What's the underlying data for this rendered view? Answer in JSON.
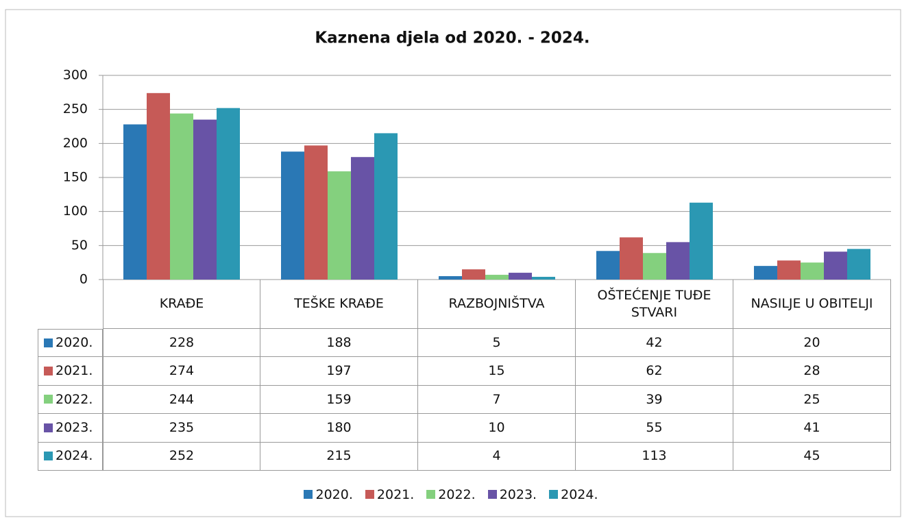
{
  "chart_data": {
    "type": "bar",
    "title": "Kaznena djela od 2020. - 2024.",
    "categories": [
      "KRAĐE",
      "TEŠKE KRAĐE",
      "RAZBOJNIŠTVA",
      "OŠTEĆENJE TUĐE STVARI",
      "NASILJE U OBITELJI"
    ],
    "series": [
      {
        "name": "2020.",
        "color": "#2a78b5",
        "values": [
          228,
          188,
          5,
          42,
          20
        ]
      },
      {
        "name": "2021.",
        "color": "#c65a57",
        "values": [
          274,
          197,
          15,
          62,
          28
        ]
      },
      {
        "name": "2022.",
        "color": "#84d07e",
        "values": [
          244,
          159,
          7,
          39,
          25
        ]
      },
      {
        "name": "2023.",
        "color": "#6853a6",
        "values": [
          235,
          180,
          10,
          55,
          41
        ]
      },
      {
        "name": "2024.",
        "color": "#2b98b3",
        "values": [
          252,
          215,
          4,
          113,
          45
        ]
      }
    ],
    "ylim": [
      0,
      300
    ],
    "yticks": [
      0,
      50,
      100,
      150,
      200,
      250,
      300
    ],
    "grid": true,
    "legend": "bottom"
  }
}
